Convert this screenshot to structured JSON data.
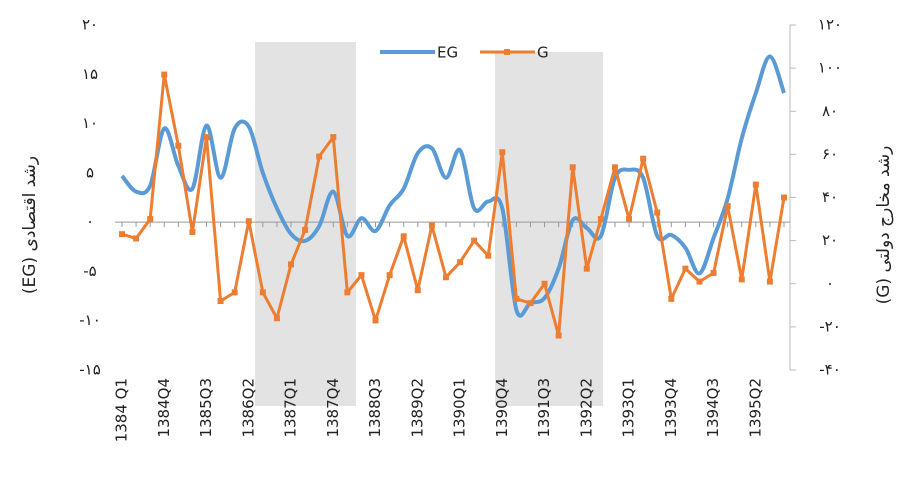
{
  "chart_data": {
    "type": "line",
    "x_axis_label": null,
    "y_axis_label": "رشد اقتصادی  (EG)",
    "y2_axis_label": "رشد مخارج دولتی (G)",
    "categories": [
      "1384 Q1",
      null,
      null,
      "1384Q4",
      null,
      null,
      "1385Q3",
      null,
      null,
      "1386Q2",
      null,
      null,
      "1387Q1",
      null,
      null,
      "1387Q4",
      null,
      null,
      "1388Q3",
      null,
      null,
      "1389Q2",
      null,
      null,
      "1390Q1",
      null,
      null,
      "1390Q4",
      null,
      null,
      "1391Q3",
      null,
      null,
      "1392Q2",
      null,
      null,
      "1393Q1",
      null,
      null,
      "1393Q4",
      null,
      null,
      "1394Q3",
      null,
      null,
      "1395Q2",
      null,
      null
    ],
    "series": [
      {
        "name": "EG",
        "color": "#5b9bd5",
        "axis": "y",
        "smooth": true,
        "marker": false,
        "values": [
          4.7,
          3.1,
          3.7,
          9.5,
          5.7,
          3.4,
          9.8,
          4.5,
          9.5,
          9.7,
          5,
          1.4,
          -1.2,
          -1.9,
          -0.4,
          3.1,
          -1.4,
          0.4,
          -0.9,
          1.7,
          3.4,
          7,
          7.5,
          4.5,
          7.3,
          1.4,
          2.1,
          1.4,
          -8.9,
          -8.2,
          -7.7,
          -4.7,
          0.2,
          -0.6,
          -1.4,
          4.5,
          5.3,
          4.5,
          -1.4,
          -1.3,
          -2.6,
          -5.2,
          -1.6,
          2.4,
          8.5,
          13.1,
          16.8,
          13.1
        ]
      },
      {
        "name": "G",
        "color": "#ed7d31",
        "axis": "y2",
        "smooth": false,
        "marker": true,
        "values": [
          23,
          21,
          30,
          97,
          64,
          24,
          68,
          -8,
          -4,
          29,
          -4,
          -16,
          9,
          25,
          59,
          68,
          -4,
          4,
          -17,
          4,
          22,
          -3,
          27,
          3,
          10,
          20,
          13,
          61,
          -7,
          -9,
          0,
          -24,
          54,
          7,
          30,
          54,
          30,
          58,
          33,
          -7,
          7,
          1,
          5,
          36,
          2,
          46,
          1,
          40
        ]
      }
    ],
    "ylim": [
      -15,
      20
    ],
    "yticks": [
      {
        "value": -15,
        "label": "-۱۵"
      },
      {
        "value": -10,
        "label": "-۱۰"
      },
      {
        "value": -5,
        "label": "-۵"
      },
      {
        "value": 0,
        "label": "۰"
      },
      {
        "value": 5,
        "label": "۵"
      },
      {
        "value": 10,
        "label": "۱۰"
      },
      {
        "value": 15,
        "label": "۱۵"
      },
      {
        "value": 20,
        "label": "۲۰"
      }
    ],
    "y2lim": [
      -40,
      120
    ],
    "y2ticks": [
      {
        "value": -40,
        "label": "-۴۰"
      },
      {
        "value": -20,
        "label": "-۲۰"
      },
      {
        "value": 0,
        "label": "۰"
      },
      {
        "value": 20,
        "label": "۲۰"
      },
      {
        "value": 40,
        "label": "۴۰"
      },
      {
        "value": 60,
        "label": "۶۰"
      },
      {
        "value": 80,
        "label": "۸۰"
      },
      {
        "value": 100,
        "label": "۱۰۰"
      },
      {
        "value": 120,
        "label": "۱۲۰"
      }
    ],
    "legend": "top"
  }
}
